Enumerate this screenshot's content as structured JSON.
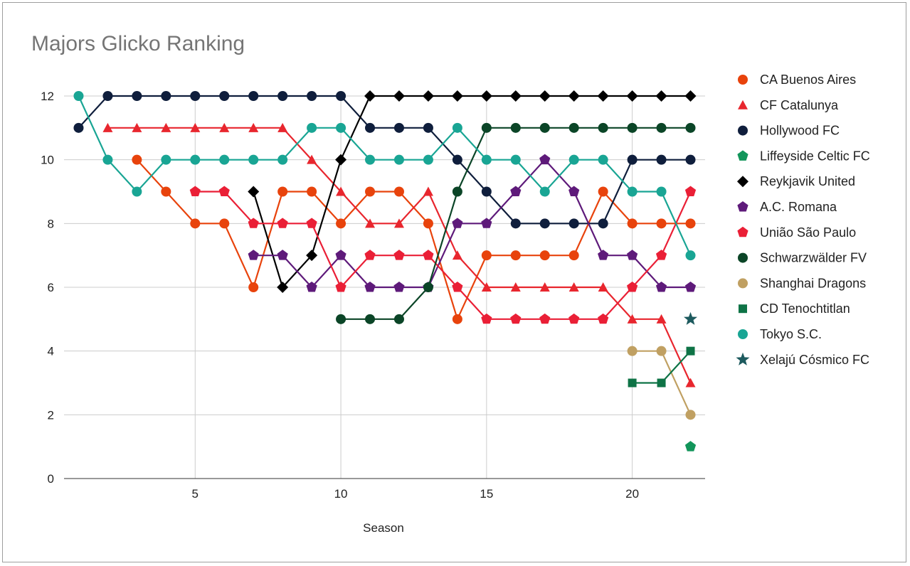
{
  "chart_data": {
    "type": "line",
    "title": "Majors Glicko Ranking",
    "xlabel": "Season",
    "ylabel": "",
    "xlim": [
      0.5,
      22.5
    ],
    "ylim": [
      0,
      12
    ],
    "x_ticks": [
      5,
      10,
      15,
      20
    ],
    "y_ticks": [
      0,
      2,
      4,
      6,
      8,
      10,
      12
    ],
    "grid": true,
    "legend_position": "right",
    "series": [
      {
        "name": "CA Buenos Aires",
        "color": "#e8430c",
        "marker": "circle",
        "x": [
          3,
          4,
          5,
          6,
          7,
          8,
          9,
          10,
          11,
          12,
          13,
          14,
          15,
          16,
          17,
          18,
          19,
          20,
          21,
          22
        ],
        "values": [
          10,
          9,
          8,
          8,
          6,
          9,
          9,
          8,
          9,
          9,
          8,
          5,
          7,
          7,
          7,
          7,
          9,
          8,
          8,
          8
        ]
      },
      {
        "name": "CF Catalunya",
        "color": "#e8262e",
        "marker": "triangle",
        "x": [
          2,
          3,
          4,
          5,
          6,
          7,
          8,
          9,
          10,
          11,
          12,
          13,
          14,
          15,
          16,
          17,
          18,
          19,
          20,
          21,
          22
        ],
        "values": [
          11,
          11,
          11,
          11,
          11,
          11,
          11,
          10,
          9,
          8,
          8,
          9,
          7,
          6,
          6,
          6,
          6,
          6,
          5,
          5,
          3
        ]
      },
      {
        "name": "Hollywood FC",
        "color": "#0f1e3c",
        "marker": "circle",
        "x": [
          1,
          2,
          3,
          4,
          5,
          6,
          7,
          8,
          9,
          10,
          11,
          12,
          13,
          14,
          15,
          16,
          17,
          18,
          19,
          20,
          21,
          22
        ],
        "values": [
          11,
          12,
          12,
          12,
          12,
          12,
          12,
          12,
          12,
          12,
          11,
          11,
          11,
          10,
          9,
          8,
          8,
          8,
          8,
          10,
          10,
          10
        ]
      },
      {
        "name": "Liffeyside Celtic FC",
        "color": "#12955a",
        "marker": "pentagon",
        "x": [
          22
        ],
        "values": [
          1
        ]
      },
      {
        "name": "Reykjavik United",
        "color": "#000000",
        "marker": "diamond",
        "x": [
          7,
          8,
          9,
          10,
          11,
          12,
          13,
          14,
          15,
          16,
          17,
          18,
          19,
          20,
          21,
          22
        ],
        "values": [
          9,
          6,
          7,
          10,
          12,
          12,
          12,
          12,
          12,
          12,
          12,
          12,
          12,
          12,
          12,
          12
        ]
      },
      {
        "name": "A.C. Romana",
        "color": "#5e1a7a",
        "marker": "pentagon",
        "x": [
          7,
          8,
          9,
          10,
          11,
          12,
          13,
          14,
          15,
          16,
          17,
          18,
          19,
          20,
          21,
          22
        ],
        "values": [
          7,
          7,
          6,
          7,
          6,
          6,
          6,
          8,
          8,
          9,
          10,
          9,
          7,
          7,
          6,
          6
        ]
      },
      {
        "name": "União São Paulo",
        "color": "#ea1f36",
        "marker": "pentagon",
        "x": [
          5,
          6,
          7,
          8,
          9,
          10,
          11,
          12,
          13,
          14,
          15,
          16,
          17,
          18,
          19,
          20,
          21,
          22
        ],
        "values": [
          9,
          9,
          8,
          8,
          8,
          6,
          7,
          7,
          7,
          6,
          5,
          5,
          5,
          5,
          5,
          6,
          7,
          9
        ]
      },
      {
        "name": "Schwarzwälder FV",
        "color": "#0b4527",
        "marker": "circle",
        "x": [
          10,
          11,
          12,
          13,
          14,
          15,
          16,
          17,
          18,
          19,
          20,
          21,
          22
        ],
        "values": [
          5,
          5,
          5,
          6,
          9,
          11,
          11,
          11,
          11,
          11,
          11,
          11,
          11
        ]
      },
      {
        "name": "Shanghai Dragons",
        "color": "#c0a062",
        "marker": "circle",
        "x": [
          20,
          21,
          22
        ],
        "values": [
          4,
          4,
          2
        ]
      },
      {
        "name": "CD Tenochtitlan",
        "color": "#0e7346",
        "marker": "square",
        "x": [
          20,
          21,
          22
        ],
        "values": [
          3,
          3,
          4
        ]
      },
      {
        "name": "Tokyo S.C.",
        "color": "#19a594",
        "marker": "circle",
        "x": [
          1,
          2,
          3,
          4,
          5,
          6,
          7,
          8,
          9,
          10,
          11,
          12,
          13,
          14,
          15,
          16,
          17,
          18,
          19,
          20,
          21,
          22
        ],
        "values": [
          12,
          10,
          9,
          10,
          10,
          10,
          10,
          10,
          11,
          11,
          10,
          10,
          10,
          11,
          10,
          10,
          9,
          10,
          10,
          9,
          9,
          7
        ]
      },
      {
        "name": "Xelajú Cósmico FC",
        "color": "#1d5a5e",
        "marker": "star",
        "x": [
          22
        ],
        "values": [
          5
        ]
      }
    ]
  }
}
